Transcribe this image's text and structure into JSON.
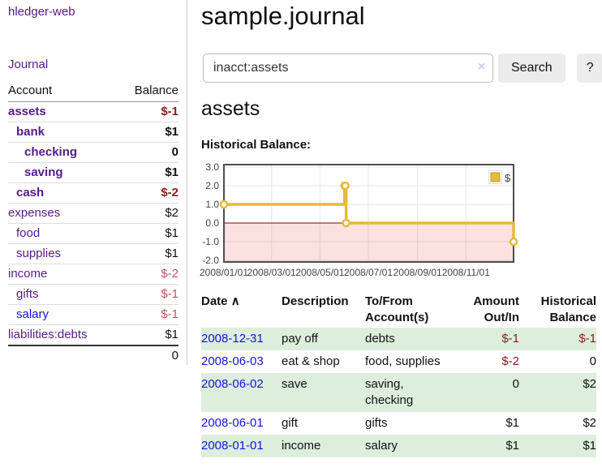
{
  "sidebar": {
    "brand": "hledger-web",
    "journal_link": "Journal",
    "accounts": {
      "col_account": "Account",
      "col_balance": "Balance",
      "rows": [
        {
          "name": "assets",
          "indent": 0,
          "balance": "$-1",
          "bold": true,
          "neg": "strong"
        },
        {
          "name": "bank",
          "indent": 1,
          "balance": "$1",
          "bold": true
        },
        {
          "name": "checking",
          "indent": 2,
          "balance": "0",
          "bold": true
        },
        {
          "name": "saving",
          "indent": 2,
          "balance": "$1",
          "bold": true
        },
        {
          "name": "cash",
          "indent": 1,
          "balance": "$-2",
          "bold": true,
          "neg": "strong"
        },
        {
          "name": "expenses",
          "indent": 0,
          "balance": "$2"
        },
        {
          "name": "food",
          "indent": 1,
          "balance": "$1"
        },
        {
          "name": "supplies",
          "indent": 1,
          "balance": "$1"
        },
        {
          "name": "income",
          "indent": 0,
          "balance": "$-2",
          "neg": "muted"
        },
        {
          "name": "gifts",
          "indent": 1,
          "balance": "$-1",
          "neg": "muted"
        },
        {
          "name": "salary",
          "indent": 1,
          "balance": "$-1",
          "neg": "muted",
          "link": "new"
        },
        {
          "name": "liabilities:debts",
          "indent": 0,
          "balance": "$1"
        }
      ],
      "total": "0"
    }
  },
  "header": {
    "title": "sample.journal"
  },
  "search": {
    "value": "inacct:assets",
    "clear_icon": "×",
    "button_label": "Search",
    "help_label": "?"
  },
  "account_page": {
    "heading": "assets",
    "chart_label": "Historical Balance:"
  },
  "chart_data": {
    "type": "line",
    "title": "Historical Balance",
    "step": true,
    "legend": "$",
    "legend_position": "top-right",
    "grid": true,
    "series": [
      {
        "name": "$",
        "color": "#e8ba37",
        "points": [
          {
            "date": "2008-01-01",
            "y": 1
          },
          {
            "date": "2008-06-01",
            "y": 2
          },
          {
            "date": "2008-06-02",
            "y": 2
          },
          {
            "date": "2008-06-03",
            "y": 0
          },
          {
            "date": "2008-12-31",
            "y": -1
          }
        ]
      }
    ],
    "xlim": [
      "2008-01-01",
      "2008-12-31"
    ],
    "ylim": [
      -2.15,
      3.15
    ],
    "x_ticks": [
      {
        "date": "2008-01-01",
        "label": "2008/01/01"
      },
      {
        "date": "2008-03-01",
        "label": "2008/03/01"
      },
      {
        "date": "2008-05-01",
        "label": "2008/05/01"
      },
      {
        "date": "2008-07-01",
        "label": "2008/07/01"
      },
      {
        "date": "2008-09-01",
        "label": "2008/09/01"
      },
      {
        "date": "2008-11-01",
        "label": "2008/11/01"
      }
    ],
    "y_ticks": [
      {
        "v": 3,
        "label": "3.0"
      },
      {
        "v": 2,
        "label": "2.0"
      },
      {
        "v": 1,
        "label": "1.0"
      },
      {
        "v": 0,
        "label": "0.0"
      },
      {
        "v": -1,
        "label": "-1.0"
      },
      {
        "v": -2,
        "label": "-2.0"
      }
    ],
    "negative_fill": "rgba(238,90,90,0.18)",
    "zero_line_color": "#8b0000"
  },
  "register": {
    "sort_icon": "∧",
    "columns": [
      {
        "label": "Date"
      },
      {
        "label": "Description"
      },
      {
        "label": "To/From Account(s)"
      },
      {
        "label": "Amount Out/In"
      },
      {
        "label": "Historical Balance"
      }
    ],
    "rows": [
      {
        "date": "2008-12-31",
        "description": "pay off",
        "accounts": "debts",
        "amount": "$-1",
        "amount_neg": true,
        "balance": "$-1",
        "balance_neg": true
      },
      {
        "date": "2008-06-03",
        "description": "eat & shop",
        "accounts": "food, supplies",
        "amount": "$-2",
        "amount_neg": true,
        "balance": "0",
        "balance_neg": false
      },
      {
        "date": "2008-06-02",
        "description": "save",
        "accounts": "saving, checking",
        "amount": "0",
        "amount_neg": false,
        "balance": "$2",
        "balance_neg": false
      },
      {
        "date": "2008-06-01",
        "description": "gift",
        "accounts": "gifts",
        "amount": "$1",
        "amount_neg": false,
        "balance": "$2",
        "balance_neg": false
      },
      {
        "date": "2008-01-01",
        "description": "income",
        "accounts": "salary",
        "amount": "$1",
        "amount_neg": false,
        "balance": "$1",
        "balance_neg": false
      }
    ]
  }
}
